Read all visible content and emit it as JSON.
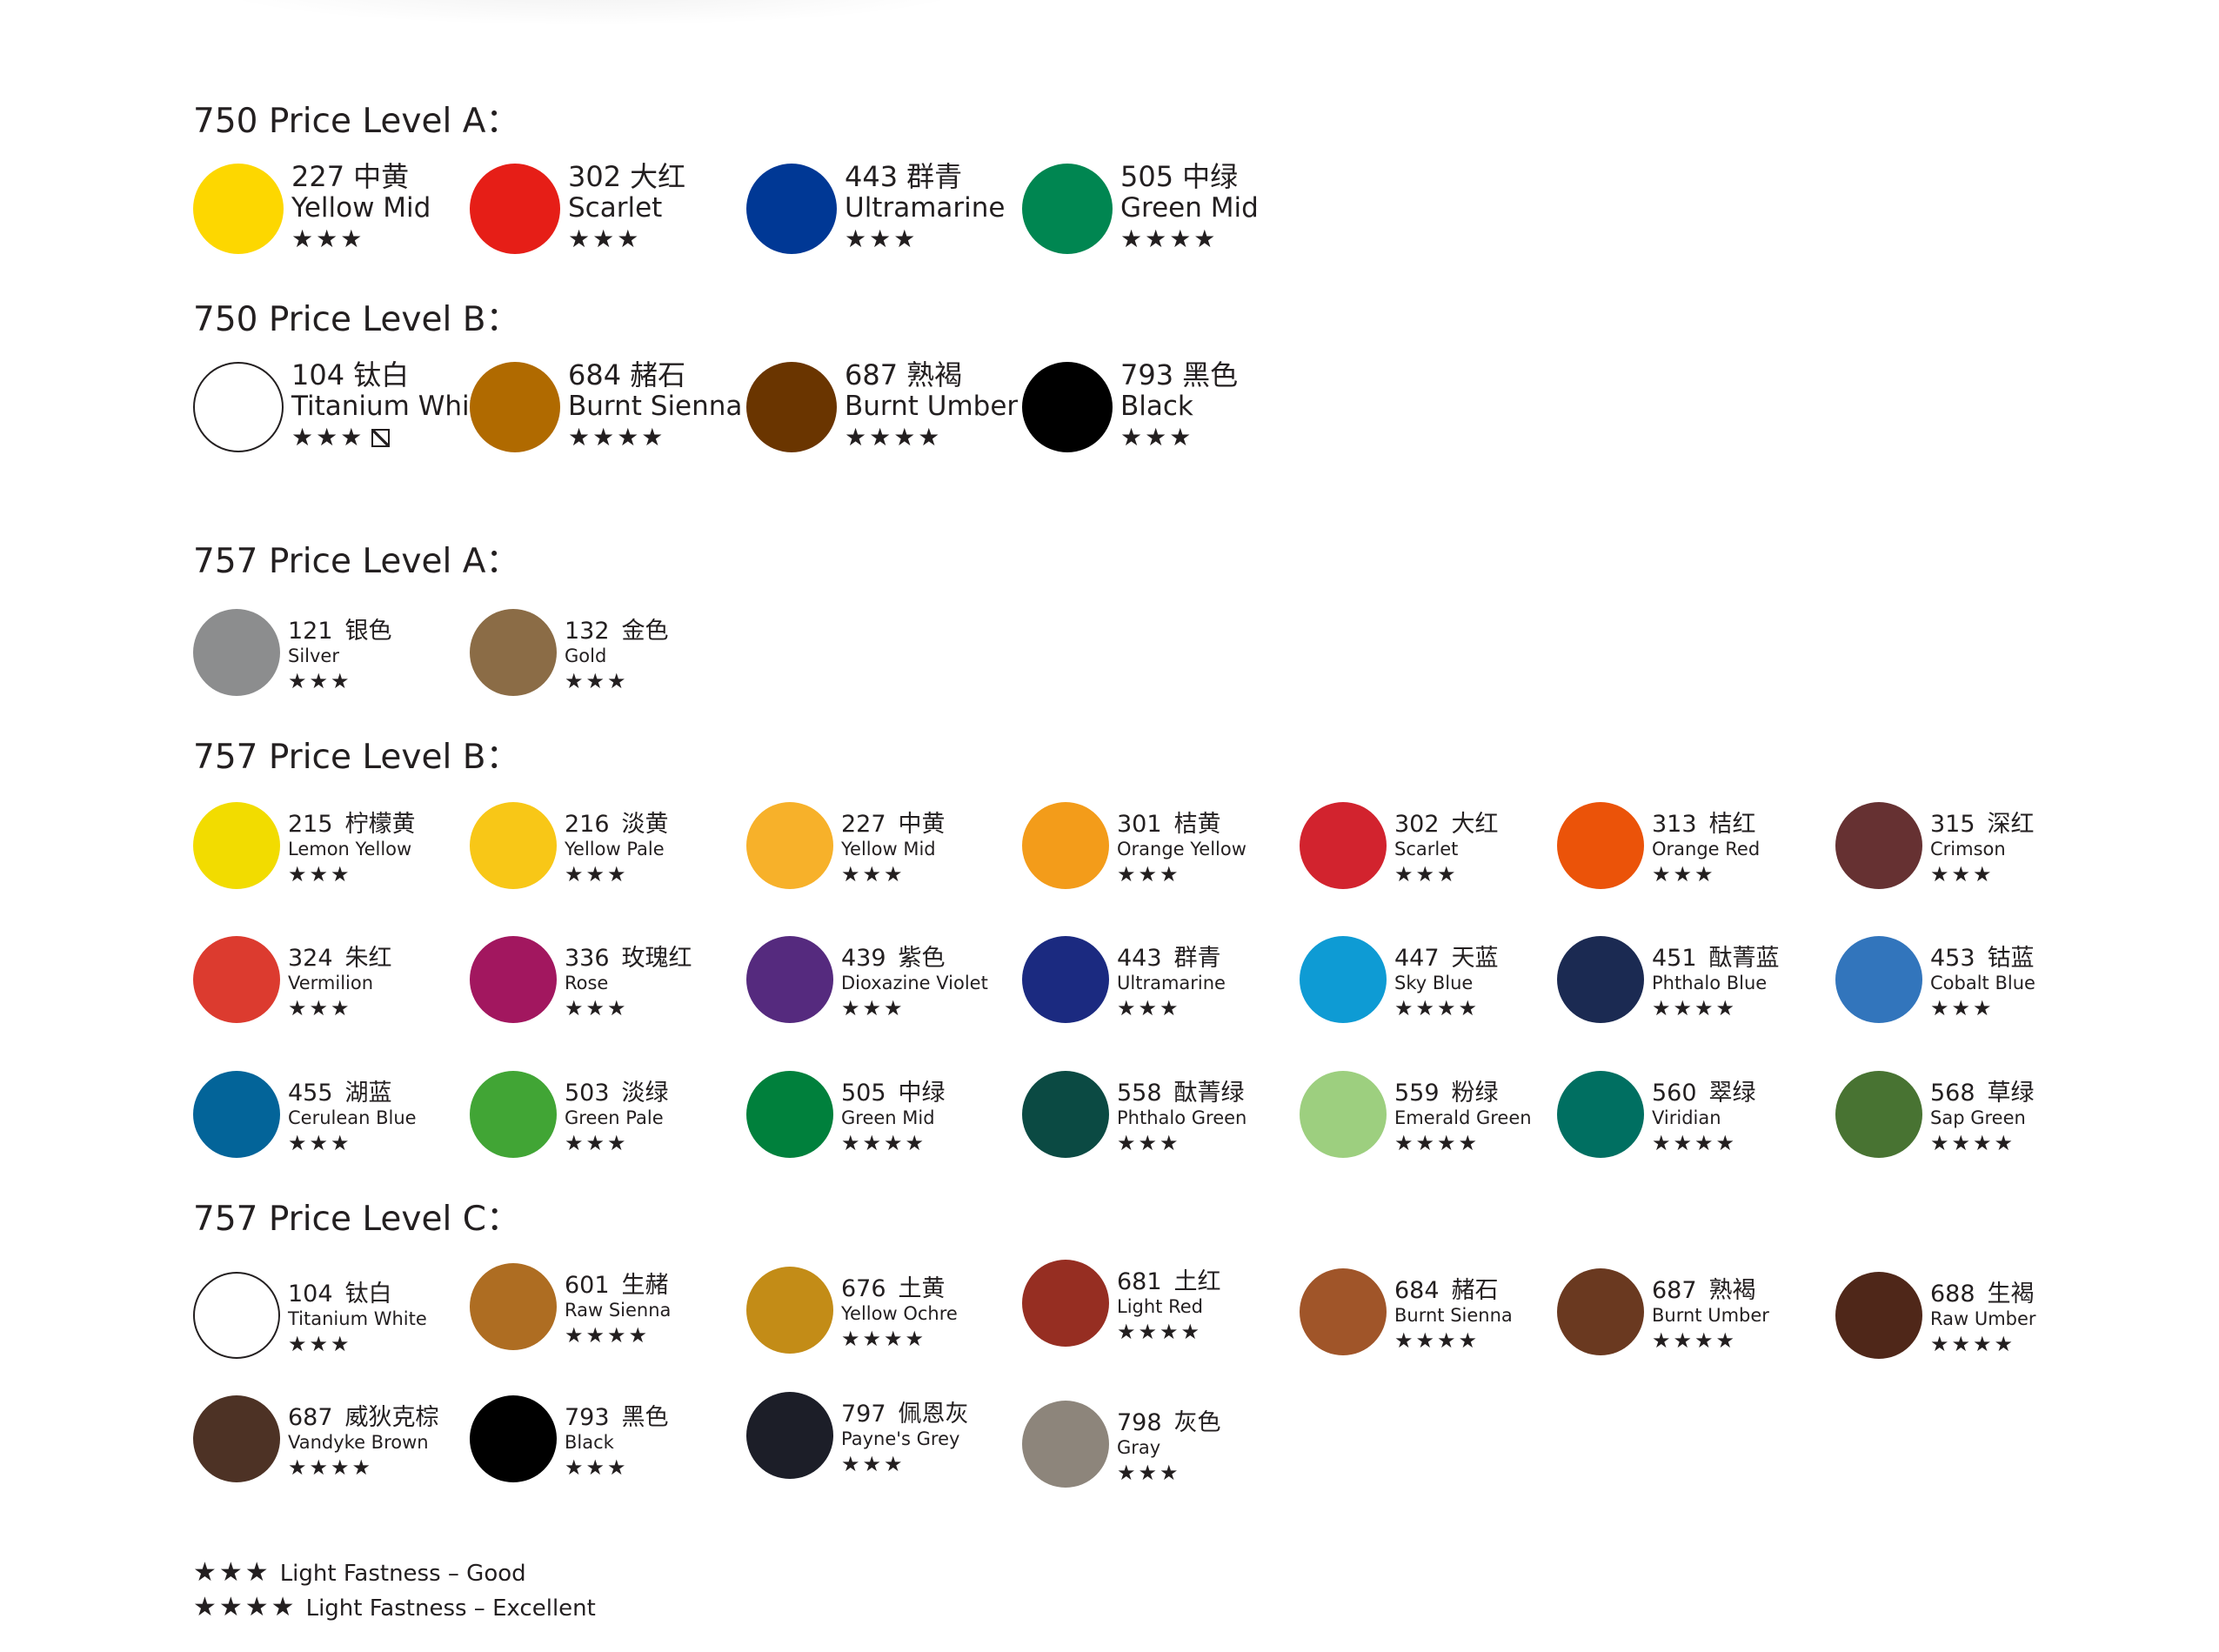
{
  "sections": [
    {
      "title": "750 Price Level A：",
      "items": [
        {
          "code": "227",
          "cn": "中黄",
          "name": "Yellow Mid",
          "stars": "★★★",
          "color": "#fdd700"
        },
        {
          "code": "302",
          "cn": "大红",
          "name": "Scarlet",
          "stars": "★★★",
          "color": "#e61e17"
        },
        {
          "code": "443",
          "cn": "群青",
          "name": "Ultramarine",
          "stars": "★★★",
          "color": "#003895"
        },
        {
          "code": "505",
          "cn": "中绿",
          "name": "Green Mid",
          "stars": "★★★★",
          "color": "#008651"
        }
      ]
    },
    {
      "title": "750 Price Level B：",
      "items": [
        {
          "code": "104",
          "cn": "钛白",
          "name": "Titanium White",
          "stars": "★★★",
          "color": "#ffffff",
          "outlined": true,
          "extra": "hatched-box"
        },
        {
          "code": "684",
          "cn": "赭石",
          "name": "Burnt Sienna",
          "stars": "★★★★",
          "color": "#b06a00"
        },
        {
          "code": "687",
          "cn": "熟褐",
          "name": "Burnt Umber",
          "stars": "★★★★",
          "color": "#6a3500"
        },
        {
          "code": "793",
          "cn": "黑色",
          "name": "Black",
          "stars": "★★★",
          "color": "#000000"
        }
      ]
    },
    {
      "title": "757 Price Level A：",
      "items": [
        {
          "code": "121",
          "cn": "银色",
          "name": "Silver",
          "stars": "★★★",
          "color": "#8c8d8e"
        },
        {
          "code": "132",
          "cn": "金色",
          "name": "Gold",
          "stars": "★★★",
          "color": "#8b6c46"
        }
      ]
    },
    {
      "title": "757 Price Level B：",
      "items": [
        {
          "code": "215",
          "cn": "柠檬黄",
          "name": "Lemon Yellow",
          "stars": "★★★",
          "color": "#f2dc00"
        },
        {
          "code": "216",
          "cn": "淡黄",
          "name": "Yellow Pale",
          "stars": "★★★",
          "color": "#f8c717"
        },
        {
          "code": "227",
          "cn": "中黄",
          "name": "Yellow Mid",
          "stars": "★★★",
          "color": "#f7b12a"
        },
        {
          "code": "301",
          "cn": "桔黄",
          "name": "Orange Yellow",
          "stars": "★★★",
          "color": "#f39c1a"
        },
        {
          "code": "302",
          "cn": "大红",
          "name": "Scarlet",
          "stars": "★★★",
          "color": "#d2232e"
        },
        {
          "code": "313",
          "cn": "桔红",
          "name": "Orange Red",
          "stars": "★★★",
          "color": "#eb5309"
        },
        {
          "code": "315",
          "cn": "深红",
          "name": "Crimson",
          "stars": "★★★",
          "color": "#663132"
        },
        {
          "code": "324",
          "cn": "朱红",
          "name": "Vermilion",
          "stars": "★★★",
          "color": "#dc3b2f"
        },
        {
          "code": "336",
          "cn": "玫瑰红",
          "name": "Rose",
          "stars": "★★★",
          "color": "#a2175f"
        },
        {
          "code": "439",
          "cn": "紫色",
          "name": "Dioxazine Violet",
          "stars": "★★★",
          "color": "#552a7e"
        },
        {
          "code": "443",
          "cn": "群青",
          "name": "Ultramarine",
          "stars": "★★★",
          "color": "#1b2a80"
        },
        {
          "code": "447",
          "cn": "天蓝",
          "name": "Sky Blue",
          "stars": "★★★★",
          "color": "#0e9bd4"
        },
        {
          "code": "451",
          "cn": "酞菁蓝",
          "name": "Phthalo Blue",
          "stars": "★★★★",
          "color": "#1b2a52"
        },
        {
          "code": "453",
          "cn": "钴蓝",
          "name": "Cobalt Blue",
          "stars": "★★★",
          "color": "#3275bc"
        },
        {
          "code": "455",
          "cn": "湖蓝",
          "name": "Cerulean Blue",
          "stars": "★★★",
          "color": "#036499"
        },
        {
          "code": "503",
          "cn": "淡绿",
          "name": "Green Pale",
          "stars": "★★★",
          "color": "#41a535"
        },
        {
          "code": "505",
          "cn": "中绿",
          "name": "Green Mid",
          "stars": "★★★★",
          "color": "#00803c"
        },
        {
          "code": "558",
          "cn": "酞菁绿",
          "name": "Phthalo Green",
          "stars": "★★★",
          "color": "#0b4a43"
        },
        {
          "code": "559",
          "cn": "粉绿",
          "name": "Emerald Green",
          "stars": "★★★★",
          "color": "#9dcf7f"
        },
        {
          "code": "560",
          "cn": "翠绿",
          "name": "Viridian",
          "stars": "★★★★",
          "color": "#006f61"
        },
        {
          "code": "568",
          "cn": "草绿",
          "name": "Sap Green",
          "stars": "★★★★",
          "color": "#487332"
        }
      ]
    },
    {
      "title": "757 Price Level C：",
      "items": [
        {
          "code": "104",
          "cn": "钛白",
          "name": "Titanium White",
          "stars": "★★★",
          "color": "#ffffff",
          "outlined": true
        },
        {
          "code": "601",
          "cn": "生赭",
          "name": "Raw Sienna",
          "stars": "★★★★",
          "color": "#ae6d22"
        },
        {
          "code": "676",
          "cn": "土黄",
          "name": "Yellow Ochre",
          "stars": "★★★★",
          "color": "#c38c17"
        },
        {
          "code": "681",
          "cn": "土红",
          "name": "Light Red",
          "stars": "★★★★",
          "color": "#962e22"
        },
        {
          "code": "684",
          "cn": "赭石",
          "name": "Burnt Sienna",
          "stars": "★★★★",
          "color": "#a05529"
        },
        {
          "code": "687",
          "cn": "熟褐",
          "name": "Burnt Umber",
          "stars": "★★★★",
          "color": "#6a3920"
        },
        {
          "code": "688",
          "cn": "生褐",
          "name": "Raw Umber",
          "stars": "★★★★",
          "color": "#4f2719"
        },
        {
          "code": "687",
          "cn": "威狄克棕",
          "name": "Vandyke Brown",
          "stars": "★★★★",
          "color": "#4d3225"
        },
        {
          "code": "793",
          "cn": "黑色",
          "name": "Black",
          "stars": "★★★",
          "color": "#000000"
        },
        {
          "code": "797",
          "cn": "佩恩灰",
          "name": "Payne's Grey",
          "stars": "★★★",
          "color": "#1c1e28"
        },
        {
          "code": "798",
          "cn": "灰色",
          "name": "Gray",
          "stars": "★★★",
          "color": "#8d857b"
        }
      ]
    }
  ],
  "legend": [
    {
      "stars": "★★★",
      "text": "Light Fastness – Good"
    },
    {
      "stars": "★★★★",
      "text": "Light Fastness – Excellent"
    }
  ]
}
